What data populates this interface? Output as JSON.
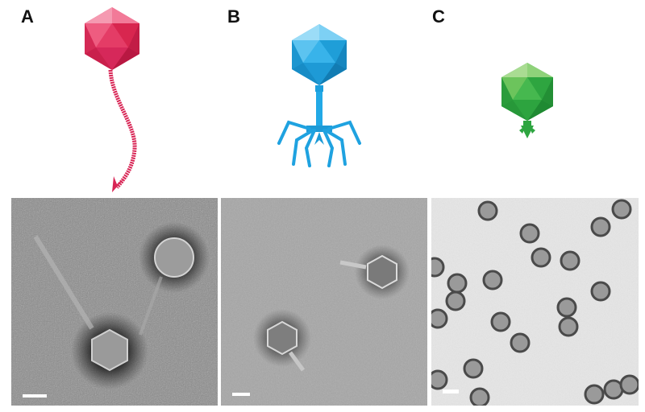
{
  "panels": [
    {
      "label": "A",
      "phage_color": "#e8325f",
      "tail": "long-flexible-noncontractile",
      "micrograph_tone": "dark-gray"
    },
    {
      "label": "B",
      "phage_color": "#2aaee8",
      "tail": "contractile-with-tail-fibers",
      "micrograph_tone": "mid-gray"
    },
    {
      "label": "C",
      "phage_color": "#3cb54a",
      "tail": "short-stubby",
      "micrograph_tone": "light-gray"
    }
  ],
  "icons": [
    "icosahedral-capsid-icon",
    "tail-icon",
    "tail-fiber-icon",
    "scale-bar"
  ]
}
